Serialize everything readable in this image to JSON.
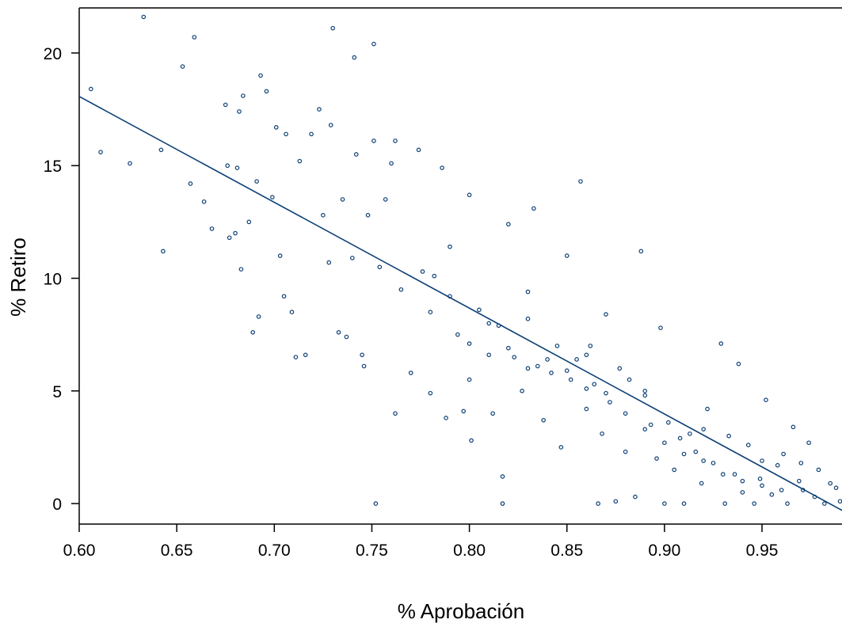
{
  "chart_data": {
    "type": "scatter",
    "xlabel": "% Aprobación",
    "ylabel": "% Retiro",
    "xlim": [
      0.6,
      0.991
    ],
    "ylim": [
      -0.91,
      22.0
    ],
    "xticks": [
      {
        "value": 0.6,
        "label": "0.60"
      },
      {
        "value": 0.65,
        "label": "0.65"
      },
      {
        "value": 0.7,
        "label": "0.70"
      },
      {
        "value": 0.75,
        "label": "0.75"
      },
      {
        "value": 0.8,
        "label": "0.80"
      },
      {
        "value": 0.85,
        "label": "0.85"
      },
      {
        "value": 0.9,
        "label": "0.90"
      },
      {
        "value": 0.95,
        "label": "0.95"
      }
    ],
    "yticks": [
      0,
      5,
      10,
      15,
      20
    ],
    "color": "#0b3f75",
    "x": [
      0.606,
      0.611,
      0.626,
      0.633,
      0.642,
      0.643,
      0.653,
      0.657,
      0.659,
      0.664,
      0.668,
      0.675,
      0.676,
      0.677,
      0.68,
      0.681,
      0.682,
      0.683,
      0.684,
      0.687,
      0.689,
      0.691,
      0.692,
      0.693,
      0.696,
      0.699,
      0.701,
      0.703,
      0.705,
      0.706,
      0.709,
      0.711,
      0.713,
      0.716,
      0.719,
      0.723,
      0.725,
      0.728,
      0.729,
      0.73,
      0.733,
      0.735,
      0.737,
      0.74,
      0.741,
      0.742,
      0.745,
      0.746,
      0.748,
      0.751,
      0.751,
      0.752,
      0.754,
      0.757,
      0.76,
      0.762,
      0.762,
      0.765,
      0.77,
      0.774,
      0.776,
      0.78,
      0.782,
      0.786,
      0.788,
      0.79,
      0.794,
      0.797,
      0.8,
      0.801,
      0.805,
      0.81,
      0.812,
      0.815,
      0.817,
      0.817,
      0.82,
      0.823,
      0.827,
      0.83,
      0.833,
      0.835,
      0.838,
      0.842,
      0.845,
      0.847,
      0.85,
      0.852,
      0.855,
      0.857,
      0.86,
      0.862,
      0.864,
      0.866,
      0.868,
      0.87,
      0.872,
      0.875,
      0.877,
      0.88,
      0.882,
      0.885,
      0.888,
      0.89,
      0.893,
      0.896,
      0.898,
      0.9,
      0.902,
      0.905,
      0.908,
      0.91,
      0.913,
      0.916,
      0.919,
      0.922,
      0.925,
      0.929,
      0.931,
      0.933,
      0.936,
      0.938,
      0.94,
      0.943,
      0.946,
      0.949,
      0.952,
      0.955,
      0.958,
      0.961,
      0.963,
      0.966,
      0.969,
      0.971,
      0.974,
      0.977,
      0.979,
      0.982,
      0.985,
      0.988,
      0.99,
      0.78,
      0.79,
      0.8,
      0.81,
      0.82,
      0.83,
      0.84,
      0.85,
      0.86,
      0.87,
      0.88,
      0.89,
      0.9,
      0.91,
      0.92,
      0.93,
      0.94,
      0.95,
      0.96,
      0.8,
      0.83,
      0.86,
      0.89,
      0.92,
      0.95,
      0.97
    ],
    "values": [
      18.4,
      15.6,
      15.1,
      21.6,
      15.7,
      11.2,
      19.4,
      14.2,
      20.7,
      13.4,
      12.2,
      17.7,
      15.0,
      11.8,
      12.0,
      14.9,
      17.4,
      10.4,
      18.1,
      12.5,
      7.6,
      14.3,
      8.3,
      19.0,
      18.3,
      13.6,
      16.7,
      11.0,
      9.2,
      16.4,
      8.5,
      6.5,
      15.2,
      6.6,
      16.4,
      17.5,
      12.8,
      10.7,
      16.8,
      21.1,
      7.6,
      13.5,
      7.4,
      10.9,
      19.8,
      15.5,
      6.6,
      6.1,
      12.8,
      16.1,
      20.4,
      0.0,
      10.5,
      13.5,
      15.1,
      16.1,
      4.0,
      9.5,
      5.8,
      15.7,
      10.3,
      4.9,
      10.1,
      14.9,
      3.8,
      11.4,
      7.5,
      4.1,
      13.7,
      2.8,
      8.6,
      6.6,
      4.0,
      7.9,
      1.2,
      0.0,
      12.4,
      6.5,
      5.0,
      9.4,
      13.1,
      6.1,
      3.7,
      5.8,
      7.0,
      2.5,
      11.0,
      5.5,
      6.4,
      14.3,
      4.2,
      7.0,
      5.3,
      0.0,
      3.1,
      8.4,
      4.5,
      0.1,
      6.0,
      2.3,
      5.5,
      0.3,
      11.2,
      4.8,
      3.5,
      2.0,
      7.8,
      0.0,
      3.6,
      1.5,
      2.9,
      0.0,
      3.1,
      2.3,
      0.9,
      4.2,
      1.8,
      7.1,
      0.0,
      3.0,
      1.3,
      6.2,
      0.5,
      2.6,
      0.0,
      1.1,
      4.6,
      0.4,
      1.7,
      2.2,
      0.0,
      3.4,
      1.0,
      0.6,
      2.7,
      0.3,
      1.5,
      0.0,
      0.9,
      0.7,
      0.1,
      8.5,
      9.2,
      7.1,
      8.0,
      6.9,
      6.0,
      6.4,
      5.9,
      5.1,
      4.9,
      4.0,
      3.3,
      2.7,
      2.2,
      1.9,
      1.3,
      1.0,
      0.8,
      0.6,
      5.5,
      8.2,
      6.6,
      5.0,
      3.3,
      1.9,
      1.8
    ],
    "fit": {
      "x": [
        0.6,
        0.991
      ],
      "values": [
        18.07,
        -0.3
      ],
      "color": "#0b3f75"
    }
  }
}
